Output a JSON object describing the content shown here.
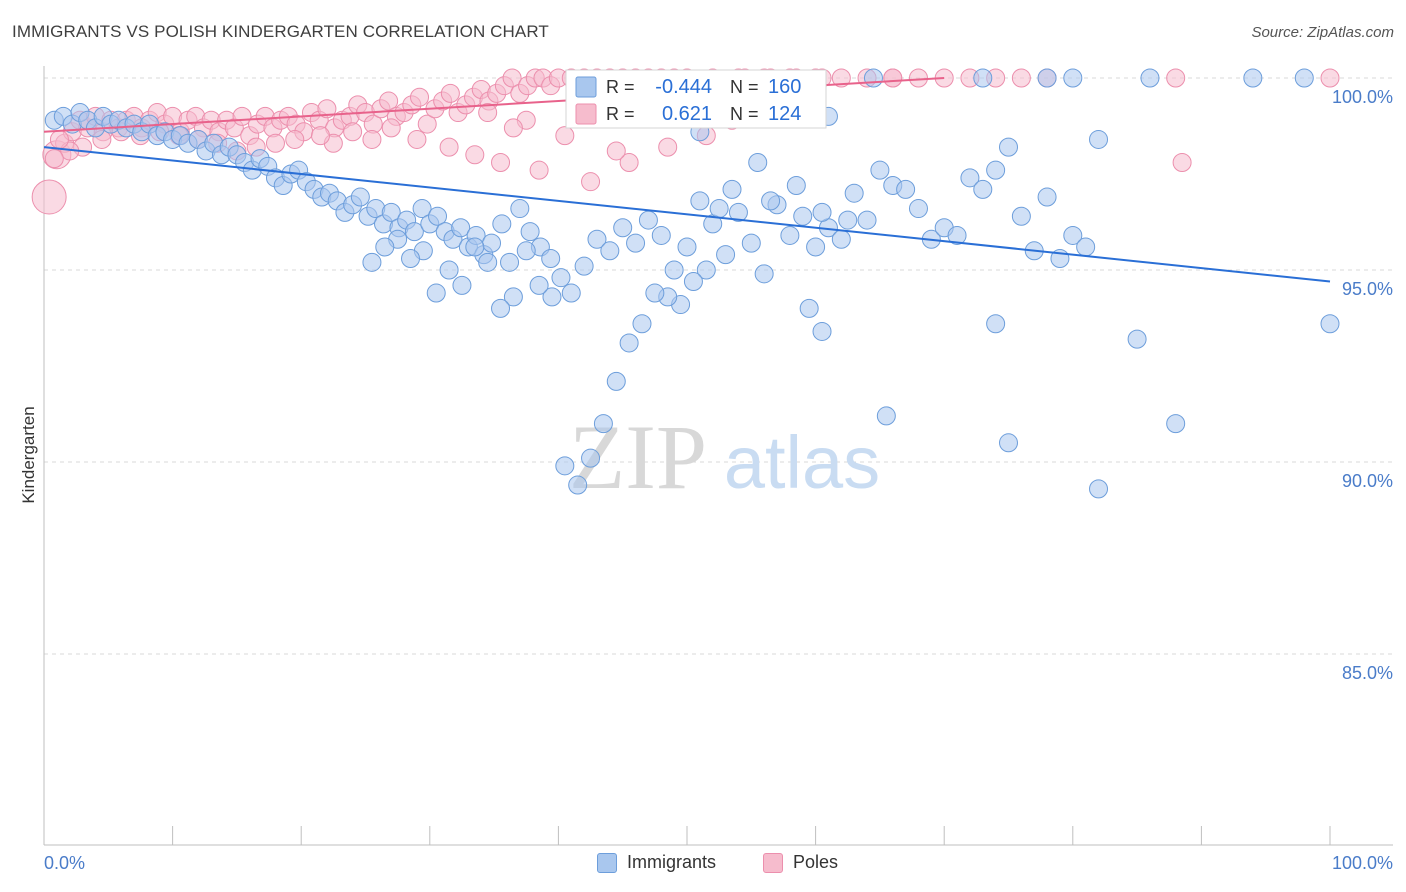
{
  "title": "IMMIGRANTS VS POLISH KINDERGARTEN CORRELATION CHART",
  "source": "Source: ZipAtlas.com",
  "watermark": {
    "zip": "ZIP",
    "atlas": "atlas"
  },
  "colors": {
    "blue_fill": "#a9c7ee",
    "blue_stroke": "#6d9edb",
    "blue_line": "#2a6fd6",
    "pink_fill": "#f6bccd",
    "pink_stroke": "#ec8fad",
    "pink_line": "#e8628b",
    "tick_label": "#4a7cc9",
    "grid": "#d9d9d9"
  },
  "chart_data": {
    "type": "scatter",
    "title": "IMMIGRANTS VS POLISH KINDERGARTEN CORRELATION CHART",
    "xlabel": "",
    "ylabel": "Kindergarten",
    "xlim": [
      0,
      100
    ],
    "ylim": [
      79.8,
      100.4
    ],
    "x_tick_labels": {
      "left": "0.0%",
      "right": "100.0%"
    },
    "y_ticks": [
      {
        "value": 100,
        "label": "100.0%"
      },
      {
        "value": 95,
        "label": "95.0%"
      },
      {
        "value": 90,
        "label": "90.0%"
      },
      {
        "value": 85,
        "label": "85.0%"
      }
    ],
    "stats": {
      "immigrants": {
        "r_label": "R =",
        "r_value": "-0.444",
        "n_label": "N =",
        "n_value": "160"
      },
      "poles": {
        "r_label": "R =",
        "r_value": "0.621",
        "n_label": "N =",
        "n_value": "124"
      }
    },
    "legend": [
      "Immigrants",
      "Poles"
    ],
    "series": [
      {
        "name": "Immigrants",
        "trend": {
          "x": [
            0,
            100
          ],
          "y": [
            98.2,
            94.7
          ]
        },
        "points": [
          [
            0.8,
            98.9
          ],
          [
            1.5,
            99.0
          ],
          [
            2.2,
            98.8
          ],
          [
            2.8,
            99.1
          ],
          [
            3.4,
            98.9
          ],
          [
            4.0,
            98.7
          ],
          [
            4.6,
            99.0
          ],
          [
            5.2,
            98.8
          ],
          [
            5.8,
            98.9
          ],
          [
            6.4,
            98.7
          ],
          [
            7.0,
            98.8
          ],
          [
            7.6,
            98.6
          ],
          [
            8.2,
            98.8
          ],
          [
            8.8,
            98.5
          ],
          [
            9.4,
            98.6
          ],
          [
            10.0,
            98.4
          ],
          [
            10.6,
            98.5
          ],
          [
            11.2,
            98.3
          ],
          [
            12.0,
            98.4
          ],
          [
            12.6,
            98.1
          ],
          [
            13.2,
            98.3
          ],
          [
            13.8,
            98.0
          ],
          [
            14.4,
            98.2
          ],
          [
            15.0,
            98.0
          ],
          [
            15.6,
            97.8
          ],
          [
            16.2,
            97.6
          ],
          [
            16.8,
            97.9
          ],
          [
            17.4,
            97.7
          ],
          [
            18.0,
            97.4
          ],
          [
            18.6,
            97.2
          ],
          [
            19.2,
            97.5
          ],
          [
            19.8,
            97.6
          ],
          [
            20.4,
            97.3
          ],
          [
            21.0,
            97.1
          ],
          [
            21.6,
            96.9
          ],
          [
            22.2,
            97.0
          ],
          [
            22.8,
            96.8
          ],
          [
            23.4,
            96.5
          ],
          [
            24.0,
            96.7
          ],
          [
            24.6,
            96.9
          ],
          [
            25.2,
            96.4
          ],
          [
            25.8,
            96.6
          ],
          [
            26.4,
            96.2
          ],
          [
            27.0,
            96.5
          ],
          [
            27.6,
            96.1
          ],
          [
            28.2,
            96.3
          ],
          [
            28.8,
            96.0
          ],
          [
            29.4,
            96.6
          ],
          [
            30.0,
            96.2
          ],
          [
            30.6,
            96.4
          ],
          [
            31.2,
            96.0
          ],
          [
            31.8,
            95.8
          ],
          [
            32.4,
            96.1
          ],
          [
            33.0,
            95.6
          ],
          [
            33.6,
            95.9
          ],
          [
            34.2,
            95.4
          ],
          [
            34.8,
            95.7
          ],
          [
            35.6,
            96.2
          ],
          [
            36.2,
            95.2
          ],
          [
            37.0,
            96.6
          ],
          [
            37.8,
            96.0
          ],
          [
            38.6,
            95.6
          ],
          [
            39.4,
            95.3
          ],
          [
            40.2,
            94.8
          ],
          [
            41.0,
            94.4
          ],
          [
            42.0,
            95.1
          ],
          [
            43.0,
            95.8
          ],
          [
            44.0,
            95.5
          ],
          [
            45.0,
            96.1
          ],
          [
            46.0,
            95.7
          ],
          [
            47.0,
            96.3
          ],
          [
            48.0,
            95.9
          ],
          [
            49.0,
            95.0
          ],
          [
            50.0,
            95.6
          ],
          [
            51.0,
            96.8
          ],
          [
            52.0,
            96.2
          ],
          [
            53.0,
            95.4
          ],
          [
            54.0,
            96.5
          ],
          [
            55.0,
            95.7
          ],
          [
            56.0,
            94.9
          ],
          [
            57.0,
            96.7
          ],
          [
            58.0,
            95.9
          ],
          [
            59.0,
            96.4
          ],
          [
            60.0,
            95.6
          ],
          [
            61.0,
            96.1
          ],
          [
            62.0,
            95.8
          ],
          [
            63.0,
            97.0
          ],
          [
            64.0,
            96.3
          ],
          [
            65.0,
            97.6
          ],
          [
            66.0,
            97.2
          ],
          [
            67.0,
            97.1
          ],
          [
            68.0,
            96.6
          ],
          [
            69.0,
            95.8
          ],
          [
            70.0,
            96.1
          ],
          [
            71.0,
            95.9
          ],
          [
            72.0,
            97.4
          ],
          [
            73.0,
            97.1
          ],
          [
            74.0,
            97.6
          ],
          [
            75.0,
            98.2
          ],
          [
            76.0,
            96.4
          ],
          [
            77.0,
            95.5
          ],
          [
            78.0,
            96.9
          ],
          [
            79.0,
            95.3
          ],
          [
            80.0,
            95.9
          ],
          [
            81.0,
            95.6
          ],
          [
            82.0,
            98.4
          ],
          [
            60.5,
            96.5
          ],
          [
            62.5,
            96.3
          ],
          [
            58.5,
            97.2
          ],
          [
            56.5,
            96.8
          ],
          [
            55.5,
            97.8
          ],
          [
            53.5,
            97.1
          ],
          [
            52.5,
            96.6
          ],
          [
            51.5,
            95.0
          ],
          [
            50.5,
            94.7
          ],
          [
            49.5,
            94.1
          ],
          [
            48.5,
            94.3
          ],
          [
            47.5,
            94.4
          ],
          [
            46.5,
            93.6
          ],
          [
            45.5,
            93.1
          ],
          [
            44.5,
            92.1
          ],
          [
            43.5,
            91.0
          ],
          [
            42.5,
            90.1
          ],
          [
            41.5,
            89.4
          ],
          [
            40.5,
            89.9
          ],
          [
            39.5,
            94.3
          ],
          [
            38.5,
            94.6
          ],
          [
            37.5,
            95.5
          ],
          [
            36.5,
            94.3
          ],
          [
            35.5,
            94.0
          ],
          [
            34.5,
            95.2
          ],
          [
            33.5,
            95.6
          ],
          [
            32.5,
            94.6
          ],
          [
            31.5,
            95.0
          ],
          [
            30.5,
            94.4
          ],
          [
            29.5,
            95.5
          ],
          [
            28.5,
            95.3
          ],
          [
            27.5,
            95.8
          ],
          [
            26.5,
            95.6
          ],
          [
            25.5,
            95.2
          ],
          [
            74.0,
            93.6
          ],
          [
            75.0,
            90.5
          ],
          [
            82.0,
            89.3
          ],
          [
            65.5,
            91.2
          ],
          [
            85.0,
            93.2
          ],
          [
            88.0,
            91.0
          ],
          [
            100.0,
            93.6
          ],
          [
            59.5,
            94.0
          ],
          [
            60.5,
            93.4
          ],
          [
            64.5,
            100.0
          ],
          [
            73.0,
            100.0
          ],
          [
            78.0,
            100.0
          ],
          [
            80.0,
            100.0
          ],
          [
            86.0,
            100.0
          ],
          [
            94.0,
            100.0
          ],
          [
            98.0,
            100.0
          ],
          [
            49.0,
            99.0
          ],
          [
            51.0,
            98.6
          ],
          [
            52.0,
            99.3
          ],
          [
            61.0,
            99.0
          ]
        ]
      },
      {
        "name": "Poles",
        "trend": {
          "x": [
            0,
            70
          ],
          "y": [
            98.6,
            100.0
          ]
        },
        "points": [
          [
            0.4,
            96.9
          ],
          [
            1.0,
            98.0
          ],
          [
            1.6,
            98.3
          ],
          [
            2.2,
            98.6
          ],
          [
            2.8,
            98.9
          ],
          [
            3.4,
            98.7
          ],
          [
            4.0,
            99.0
          ],
          [
            4.6,
            98.6
          ],
          [
            5.2,
            98.9
          ],
          [
            5.8,
            98.7
          ],
          [
            6.4,
            98.9
          ],
          [
            7.0,
            99.0
          ],
          [
            7.6,
            98.7
          ],
          [
            8.2,
            98.9
          ],
          [
            8.8,
            99.1
          ],
          [
            9.4,
            98.8
          ],
          [
            10.0,
            99.0
          ],
          [
            10.6,
            98.6
          ],
          [
            11.2,
            98.9
          ],
          [
            11.8,
            99.0
          ],
          [
            12.4,
            98.7
          ],
          [
            13.0,
            98.9
          ],
          [
            13.6,
            98.6
          ],
          [
            14.2,
            98.9
          ],
          [
            14.8,
            98.7
          ],
          [
            15.4,
            99.0
          ],
          [
            16.0,
            98.5
          ],
          [
            16.6,
            98.8
          ],
          [
            17.2,
            99.0
          ],
          [
            17.8,
            98.7
          ],
          [
            18.4,
            98.9
          ],
          [
            19.0,
            99.0
          ],
          [
            19.6,
            98.8
          ],
          [
            20.2,
            98.6
          ],
          [
            20.8,
            99.1
          ],
          [
            21.4,
            98.9
          ],
          [
            22.0,
            99.2
          ],
          [
            22.6,
            98.7
          ],
          [
            23.2,
            98.9
          ],
          [
            23.8,
            99.0
          ],
          [
            24.4,
            99.3
          ],
          [
            25.0,
            99.1
          ],
          [
            25.6,
            98.8
          ],
          [
            26.2,
            99.2
          ],
          [
            26.8,
            99.4
          ],
          [
            27.4,
            99.0
          ],
          [
            28.0,
            99.1
          ],
          [
            28.6,
            99.3
          ],
          [
            29.2,
            99.5
          ],
          [
            29.8,
            98.8
          ],
          [
            30.4,
            99.2
          ],
          [
            31.0,
            99.4
          ],
          [
            31.6,
            99.6
          ],
          [
            32.2,
            99.1
          ],
          [
            32.8,
            99.3
          ],
          [
            33.4,
            99.5
          ],
          [
            34.0,
            99.7
          ],
          [
            34.6,
            99.4
          ],
          [
            35.2,
            99.6
          ],
          [
            35.8,
            99.8
          ],
          [
            36.4,
            100.0
          ],
          [
            37.0,
            99.6
          ],
          [
            37.6,
            99.8
          ],
          [
            38.2,
            100.0
          ],
          [
            38.8,
            100.0
          ],
          [
            39.4,
            99.8
          ],
          [
            40.0,
            100.0
          ],
          [
            41.0,
            100.0
          ],
          [
            42.0,
            100.0
          ],
          [
            43.0,
            100.0
          ],
          [
            44.0,
            100.0
          ],
          [
            45.0,
            100.0
          ],
          [
            46.0,
            100.0
          ],
          [
            47.0,
            100.0
          ],
          [
            48.0,
            100.0
          ],
          [
            49.0,
            100.0
          ],
          [
            50.0,
            100.0
          ],
          [
            52.0,
            100.0
          ],
          [
            54.0,
            100.0
          ],
          [
            56.0,
            100.0
          ],
          [
            58.0,
            100.0
          ],
          [
            60.0,
            100.0
          ],
          [
            62.0,
            100.0
          ],
          [
            66.0,
            100.0
          ],
          [
            68.0,
            100.0
          ],
          [
            70.0,
            100.0
          ],
          [
            72.0,
            100.0
          ],
          [
            74.0,
            100.0
          ],
          [
            76.0,
            100.0
          ],
          [
            78.0,
            100.0
          ],
          [
            88.0,
            100.0
          ],
          [
            100.0,
            100.0
          ],
          [
            29.0,
            98.4
          ],
          [
            31.5,
            98.2
          ],
          [
            33.5,
            98.0
          ],
          [
            35.5,
            97.8
          ],
          [
            38.5,
            97.6
          ],
          [
            42.5,
            97.3
          ],
          [
            45.5,
            97.8
          ],
          [
            48.5,
            98.2
          ],
          [
            51.5,
            98.5
          ],
          [
            53.5,
            98.9
          ],
          [
            44.5,
            98.1
          ],
          [
            40.5,
            98.5
          ],
          [
            37.5,
            98.9
          ],
          [
            36.5,
            98.7
          ],
          [
            34.5,
            99.1
          ],
          [
            27.0,
            98.7
          ],
          [
            25.5,
            98.4
          ],
          [
            24.0,
            98.6
          ],
          [
            22.5,
            98.3
          ],
          [
            21.5,
            98.5
          ],
          [
            19.5,
            98.4
          ],
          [
            18.0,
            98.3
          ],
          [
            16.5,
            98.2
          ],
          [
            15.0,
            98.1
          ],
          [
            13.5,
            98.3
          ],
          [
            12.0,
            98.4
          ],
          [
            10.5,
            98.5
          ],
          [
            9.0,
            98.6
          ],
          [
            7.5,
            98.5
          ],
          [
            6.0,
            98.6
          ],
          [
            4.5,
            98.4
          ],
          [
            3.0,
            98.2
          ],
          [
            88.5,
            97.8
          ],
          [
            2.0,
            98.1
          ],
          [
            1.2,
            98.4
          ],
          [
            0.8,
            97.9
          ],
          [
            66.0,
            100.0
          ],
          [
            64.0,
            100.0
          ],
          [
            60.5,
            100.0
          ],
          [
            58.5,
            100.0
          ],
          [
            56.5,
            100.0
          ],
          [
            54.5,
            100.0
          ]
        ]
      }
    ]
  }
}
